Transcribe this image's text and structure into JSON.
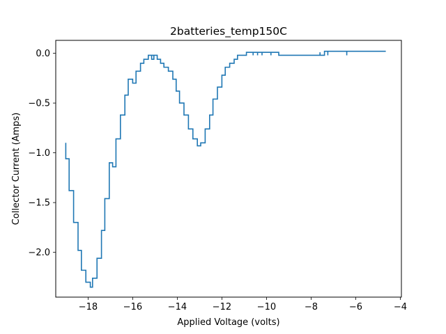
{
  "chart_data": {
    "type": "line",
    "title": "2batteries_temp150C",
    "xlabel": "Applied Voltage (volts)",
    "ylabel": "Collector Current (Amps)",
    "xlim": [
      -19.45,
      -3.95
    ],
    "ylim": [
      -2.45,
      0.13
    ],
    "xticks": [
      -18,
      -16,
      -14,
      -12,
      -10,
      -8,
      -6,
      -4
    ],
    "yticks": [
      -2.0,
      -1.5,
      -1.0,
      -0.5,
      0.0
    ],
    "grid": false,
    "step": "post",
    "series": [
      {
        "color": "#1f77b4",
        "x": [
          -19.0,
          -19.0,
          -18.85,
          -18.65,
          -18.45,
          -18.3,
          -18.1,
          -17.9,
          -17.8,
          -17.8,
          -17.6,
          -17.4,
          -17.25,
          -17.05,
          -16.9,
          -16.9,
          -16.75,
          -16.75,
          -16.55,
          -16.35,
          -16.2,
          -16.0,
          -15.85,
          -15.65,
          -15.5,
          -15.3,
          -15.15,
          -15.05,
          -15.15,
          -14.9,
          -14.75,
          -14.6,
          -14.4,
          -14.2,
          -14.05,
          -13.9,
          -13.7,
          -13.5,
          -13.3,
          -13.1,
          -12.95,
          -12.75,
          -12.55,
          -12.4,
          -12.2,
          -12.0,
          -11.85,
          -11.65,
          -11.45,
          -11.3,
          -11.1,
          -10.9,
          -10.6,
          -10.6,
          -10.4,
          -10.4,
          -10.2,
          -10.2,
          -10.0,
          -9.8,
          -9.8,
          -9.6,
          -9.45,
          -8.0,
          -7.6,
          -7.6,
          -7.4,
          -7.25,
          -7.25,
          -7.0,
          -6.4,
          -6.4,
          -6.0,
          -5.0,
          -4.65
        ],
        "y": [
          -0.9,
          -1.06,
          -1.38,
          -1.7,
          -1.98,
          -2.18,
          -2.3,
          -2.35,
          -2.26,
          -2.26,
          -2.06,
          -1.78,
          -1.46,
          -1.1,
          -1.14,
          -1.14,
          -0.86,
          -0.86,
          -0.62,
          -0.42,
          -0.26,
          -0.3,
          -0.18,
          -0.1,
          -0.06,
          -0.02,
          -0.06,
          -0.02,
          -0.02,
          -0.06,
          -0.1,
          -0.14,
          -0.18,
          -0.26,
          -0.38,
          -0.5,
          -0.62,
          -0.76,
          -0.86,
          -0.93,
          -0.9,
          -0.76,
          -0.62,
          -0.46,
          -0.34,
          -0.22,
          -0.14,
          -0.1,
          -0.06,
          -0.02,
          -0.02,
          0.01,
          -0.02,
          0.01,
          -0.02,
          0.01,
          -0.02,
          0.01,
          0.01,
          -0.02,
          0.01,
          0.01,
          -0.02,
          -0.02,
          0.01,
          -0.02,
          0.02,
          -0.02,
          0.02,
          0.02,
          -0.02,
          0.02,
          0.02,
          0.02,
          0.02
        ]
      }
    ]
  }
}
